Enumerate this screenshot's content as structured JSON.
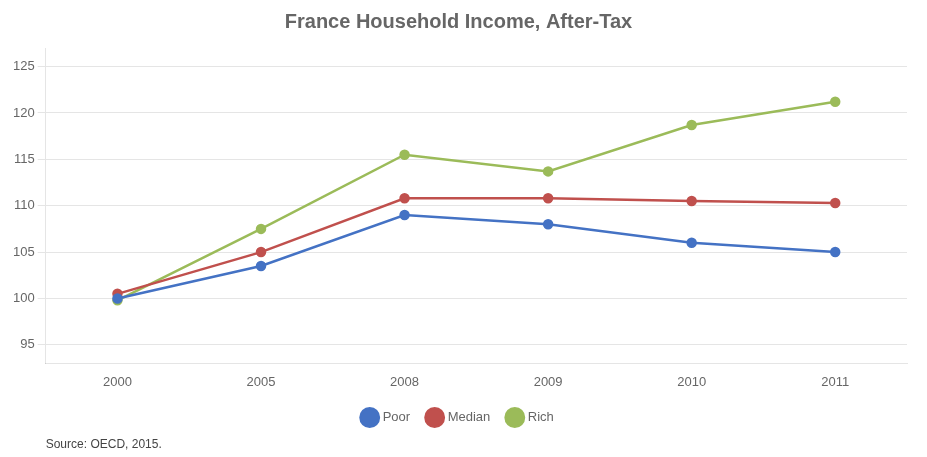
{
  "chart_data": {
    "type": "line",
    "title": "France Household Income, After-Tax",
    "annotations": [
      "Source: OECD, 2015."
    ],
    "categories": [
      "2000",
      "2005",
      "2008",
      "2009",
      "2010",
      "2011"
    ],
    "series": [
      {
        "name": "Poor",
        "color": "#4472C4",
        "values": [
          100.0,
          103.5,
          109.0,
          108.0,
          106.0,
          105.0
        ]
      },
      {
        "name": "Median",
        "color": "#C0504D",
        "values": [
          100.5,
          105.0,
          110.8,
          110.8,
          110.5,
          110.3
        ]
      },
      {
        "name": "Rich",
        "color": "#9BBB59",
        "values": [
          99.8,
          107.5,
          115.5,
          113.7,
          118.7,
          121.2
        ]
      }
    ],
    "ylim": [
      93,
      127
    ],
    "yticks": [
      95,
      100,
      105,
      110,
      115,
      120,
      125
    ],
    "grid": "y",
    "legend": "bottom",
    "marker": "circle"
  }
}
